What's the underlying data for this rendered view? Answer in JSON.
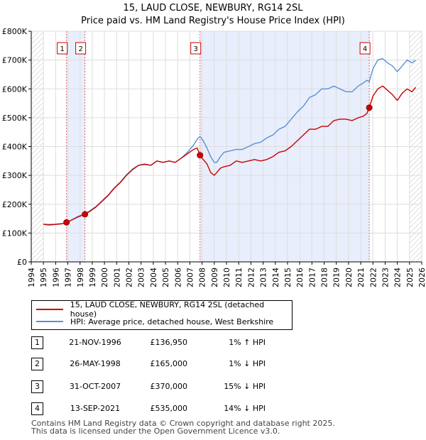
{
  "title": "15, LAUD CLOSE, NEWBURY, RG14 2SL",
  "subtitle": "Price paid vs. HM Land Registry's House Price Index (HPI)",
  "colors": {
    "property": "#cc0000",
    "hpi": "#5b8fd6",
    "shade": "#e8eefb",
    "marker_line": "#e06060",
    "grid": "#dddddd"
  },
  "legend": {
    "property": "15, LAUD CLOSE, NEWBURY, RG14 2SL (detached house)",
    "hpi": "HPI: Average price, detached house, West Berkshire"
  },
  "transactions": [
    {
      "num": "1",
      "date": "21-NOV-1996",
      "price": "£136,950",
      "hpi": "1% ↑ HPI"
    },
    {
      "num": "2",
      "date": "26-MAY-1998",
      "price": "£165,000",
      "hpi": "1% ↓ HPI"
    },
    {
      "num": "3",
      "date": "31-OCT-2007",
      "price": "£370,000",
      "hpi": "15% ↓ HPI"
    },
    {
      "num": "4",
      "date": "13-SEP-2021",
      "price": "£535,000",
      "hpi": "14% ↓ HPI"
    }
  ],
  "footer": {
    "line1": "Contains HM Land Registry data © Crown copyright and database right 2025.",
    "line2": "This data is licensed under the Open Government Licence v3.0."
  },
  "chart_data": {
    "type": "line",
    "title": "15, LAUD CLOSE, NEWBURY, RG14 2SL",
    "subtitle": "Price paid vs. HM Land Registry's House Price Index (HPI)",
    "xlabel": "",
    "ylabel": "",
    "xlim": [
      1994,
      2026
    ],
    "ylim": [
      0,
      800000
    ],
    "x_ticks": [
      "1994",
      "1995",
      "1996",
      "1997",
      "1998",
      "1999",
      "2000",
      "2001",
      "2002",
      "2003",
      "2004",
      "2005",
      "2006",
      "2007",
      "2008",
      "2009",
      "2010",
      "2011",
      "2012",
      "2013",
      "2014",
      "2015",
      "2016",
      "2017",
      "2018",
      "2019",
      "2020",
      "2021",
      "2022",
      "2023",
      "2024",
      "2025",
      "2026"
    ],
    "y_ticks": [
      {
        "value": 0,
        "label": "£0"
      },
      {
        "value": 100000,
        "label": "£100K"
      },
      {
        "value": 200000,
        "label": "£200K"
      },
      {
        "value": 300000,
        "label": "£300K"
      },
      {
        "value": 400000,
        "label": "£400K"
      },
      {
        "value": 500000,
        "label": "£500K"
      },
      {
        "value": 600000,
        "label": "£600K"
      },
      {
        "value": 700000,
        "label": "£700K"
      },
      {
        "value": 800000,
        "label": "£800K"
      }
    ],
    "shaded_ranges": [
      [
        1996.89,
        1998.4
      ],
      [
        2007.83,
        2021.7
      ]
    ],
    "hatched_ranges": [
      [
        1994.0,
        1995.0
      ],
      [
        2025.0,
        2026.0
      ]
    ],
    "sales": [
      {
        "label": "1",
        "x": 1996.89,
        "y": 136950
      },
      {
        "label": "2",
        "x": 1998.4,
        "y": 165000
      },
      {
        "label": "3",
        "x": 2007.83,
        "y": 370000
      },
      {
        "label": "4",
        "x": 2021.7,
        "y": 535000
      }
    ],
    "series": [
      {
        "name": "15, LAUD CLOSE, NEWBURY, RG14 2SL (detached house)",
        "color": "#cc0000",
        "x": [
          1995.0,
          1995.5,
          1996.0,
          1996.5,
          1996.89,
          1997.3,
          1997.8,
          1998.4,
          1998.8,
          1999.3,
          1999.8,
          2000.3,
          2000.8,
          2001.3,
          2001.8,
          2002.3,
          2002.8,
          2003.3,
          2003.8,
          2004.3,
          2004.8,
          2005.3,
          2005.8,
          2006.3,
          2006.8,
          2007.3,
          2007.6,
          2007.83,
          2008.1,
          2008.4,
          2008.7,
          2009.0,
          2009.2,
          2009.5,
          2009.8,
          2010.3,
          2010.8,
          2011.3,
          2011.8,
          2012.3,
          2012.8,
          2013.3,
          2013.8,
          2014.3,
          2014.8,
          2015.3,
          2015.8,
          2016.3,
          2016.8,
          2017.3,
          2017.8,
          2018.3,
          2018.8,
          2019.3,
          2019.8,
          2020.3,
          2020.8,
          2021.2,
          2021.5,
          2021.7,
          2022.0,
          2022.4,
          2022.8,
          2023.2,
          2023.6,
          2024.0,
          2024.4,
          2024.8,
          2025.2,
          2025.5
        ],
        "y": [
          130000,
          128000,
          130000,
          132000,
          136950,
          145000,
          155000,
          165000,
          175000,
          190000,
          210000,
          230000,
          255000,
          275000,
          300000,
          320000,
          335000,
          338000,
          335000,
          350000,
          345000,
          350000,
          345000,
          360000,
          375000,
          390000,
          395000,
          370000,
          355000,
          340000,
          310000,
          300000,
          310000,
          325000,
          330000,
          335000,
          350000,
          345000,
          350000,
          355000,
          350000,
          355000,
          365000,
          380000,
          385000,
          400000,
          420000,
          440000,
          460000,
          460000,
          470000,
          470000,
          490000,
          495000,
          495000,
          490000,
          500000,
          505000,
          515000,
          535000,
          575000,
          600000,
          610000,
          595000,
          580000,
          560000,
          585000,
          600000,
          590000,
          605000
        ]
      },
      {
        "name": "HPI: Average price, detached house, West Berkshire",
        "color": "#5b8fd6",
        "x": [
          1995.0,
          1995.5,
          1996.0,
          1996.5,
          1996.89,
          1997.3,
          1997.8,
          1998.4,
          1998.8,
          1999.3,
          1999.8,
          2000.3,
          2000.8,
          2001.3,
          2001.8,
          2002.3,
          2002.8,
          2003.3,
          2003.8,
          2004.3,
          2004.8,
          2005.3,
          2005.8,
          2006.3,
          2006.8,
          2007.3,
          2007.6,
          2007.83,
          2008.1,
          2008.4,
          2008.7,
          2009.0,
          2009.2,
          2009.5,
          2009.8,
          2010.3,
          2010.8,
          2011.3,
          2011.8,
          2012.3,
          2012.8,
          2013.3,
          2013.8,
          2014.3,
          2014.8,
          2015.3,
          2015.8,
          2016.3,
          2016.8,
          2017.3,
          2017.8,
          2018.3,
          2018.8,
          2019.3,
          2019.8,
          2020.3,
          2020.8,
          2021.2,
          2021.5,
          2021.7,
          2022.0,
          2022.4,
          2022.8,
          2023.2,
          2023.6,
          2024.0,
          2024.4,
          2024.8,
          2025.2,
          2025.5
        ],
        "y": [
          131000,
          130000,
          131000,
          133000,
          135000,
          145000,
          157000,
          167000,
          177000,
          192000,
          212000,
          232000,
          257000,
          277000,
          302000,
          322000,
          335000,
          340000,
          335000,
          350000,
          345000,
          350000,
          345000,
          360000,
          380000,
          405000,
          425000,
          435000,
          420000,
          395000,
          365000,
          345000,
          345000,
          365000,
          380000,
          385000,
          390000,
          390000,
          400000,
          410000,
          415000,
          430000,
          440000,
          460000,
          470000,
          495000,
          520000,
          540000,
          570000,
          580000,
          600000,
          600000,
          610000,
          600000,
          590000,
          590000,
          610000,
          620000,
          630000,
          625000,
          670000,
          700000,
          705000,
          690000,
          680000,
          660000,
          680000,
          700000,
          690000,
          700000
        ]
      }
    ]
  }
}
